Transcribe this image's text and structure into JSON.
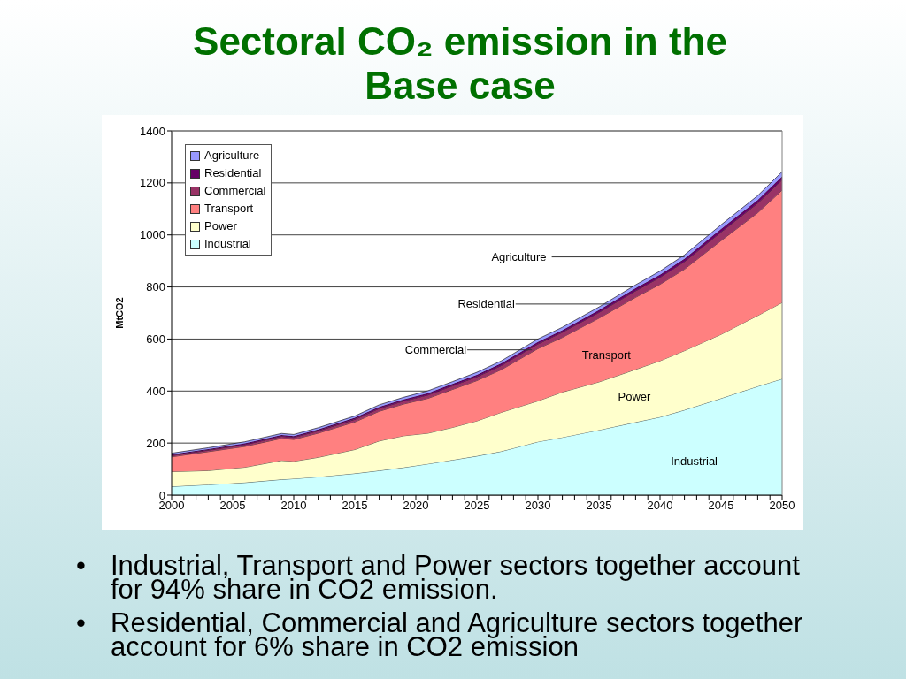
{
  "chart_data": {
    "type": "area",
    "title": "Sectoral CO₂ emission in the Base case",
    "ylabel": "MtCO2",
    "stacked": true,
    "grid": "y",
    "legend": "top left",
    "x": [
      2000,
      2003,
      2006,
      2009,
      2010,
      2012,
      2015,
      2017,
      2019,
      2021,
      2023,
      2025,
      2027,
      2030,
      2032,
      2035,
      2038,
      2040,
      2042,
      2045,
      2048,
      2050
    ],
    "xlim": [
      2000,
      2050
    ],
    "xticks": [
      2000,
      {
        "value": 2001,
        "label": null
      },
      {
        "value": 2002,
        "label": null
      },
      {
        "value": 2003,
        "label": null
      },
      {
        "value": 2004,
        "label": null
      },
      2005,
      {
        "value": 2006,
        "label": null
      },
      {
        "value": 2007,
        "label": null
      },
      {
        "value": 2008,
        "label": null
      },
      {
        "value": 2009,
        "label": null
      },
      2010,
      {
        "value": 2011,
        "label": null
      },
      {
        "value": 2012,
        "label": null
      },
      {
        "value": 2013,
        "label": null
      },
      {
        "value": 2014,
        "label": null
      },
      2015,
      {
        "value": 2016,
        "label": null
      },
      {
        "value": 2017,
        "label": null
      },
      {
        "value": 2018,
        "label": null
      },
      {
        "value": 2019,
        "label": null
      },
      2020,
      {
        "value": 2021,
        "label": null
      },
      {
        "value": 2022,
        "label": null
      },
      {
        "value": 2023,
        "label": null
      },
      {
        "value": 2024,
        "label": null
      },
      2025,
      {
        "value": 2026,
        "label": null
      },
      {
        "value": 2027,
        "label": null
      },
      {
        "value": 2028,
        "label": null
      },
      {
        "value": 2029,
        "label": null
      },
      2030,
      {
        "value": 2031,
        "label": null
      },
      {
        "value": 2032,
        "label": null
      },
      {
        "value": 2033,
        "label": null
      },
      {
        "value": 2034,
        "label": null
      },
      2035,
      {
        "value": 2036,
        "label": null
      },
      {
        "value": 2037,
        "label": null
      },
      {
        "value": 2038,
        "label": null
      },
      {
        "value": 2039,
        "label": null
      },
      2040,
      {
        "value": 2041,
        "label": null
      },
      {
        "value": 2042,
        "label": null
      },
      {
        "value": 2043,
        "label": null
      },
      {
        "value": 2044,
        "label": null
      },
      2045,
      {
        "value": 2046,
        "label": null
      },
      {
        "value": 2047,
        "label": null
      },
      {
        "value": 2048,
        "label": null
      },
      {
        "value": 2049,
        "label": null
      },
      2050
    ],
    "ylim": [
      0,
      1400
    ],
    "yticks": [
      0,
      200,
      400,
      600,
      800,
      1000,
      1200,
      1400
    ],
    "series": [
      {
        "name": "Industrial",
        "color": "#ccffff",
        "values": [
          33,
          40,
          48,
          60,
          63,
          70,
          83,
          94,
          106,
          120,
          135,
          150,
          168,
          205,
          222,
          250,
          280,
          300,
          327,
          372,
          418,
          447
        ]
      },
      {
        "name": "Power",
        "color": "#ffffcc",
        "values": [
          57,
          54,
          59,
          73,
          67,
          75,
          92,
          114,
          122,
          118,
          125,
          135,
          150,
          157,
          174,
          185,
          203,
          216,
          228,
          246,
          272,
          293
        ]
      },
      {
        "name": "Transport",
        "color": "#ff8080",
        "values": [
          57,
          73,
          80,
          85,
          84,
          93,
          106,
          114,
          122,
          134,
          146,
          155,
          164,
          201,
          210,
          245,
          277,
          294,
          313,
          360,
          395,
          432
        ]
      },
      {
        "name": "Commercial",
        "color": "#993366",
        "values": [
          5,
          6,
          7,
          8,
          8,
          9,
          10,
          11,
          12,
          13,
          14,
          15,
          16,
          18,
          20,
          22,
          25,
          27,
          29,
          33,
          37,
          40
        ]
      },
      {
        "name": "Residential",
        "color": "#660066",
        "values": [
          4,
          4,
          5,
          5,
          5,
          5,
          6,
          6,
          6,
          7,
          7,
          7,
          8,
          8,
          8,
          9,
          10,
          10,
          11,
          12,
          12,
          13
        ]
      },
      {
        "name": "Agriculture",
        "color": "#9999ff",
        "values": [
          5,
          5,
          6,
          6,
          6,
          7,
          7,
          8,
          8,
          9,
          9,
          10,
          10,
          11,
          11,
          12,
          13,
          14,
          15,
          16,
          17,
          18
        ]
      }
    ],
    "annotations": [
      "• Industrial, Transport and Power sectors together account for 94% share in CO2 emission.",
      "• Residential, Commercial and Agriculture sectors together account for 6% share in CO2 emission"
    ]
  }
}
